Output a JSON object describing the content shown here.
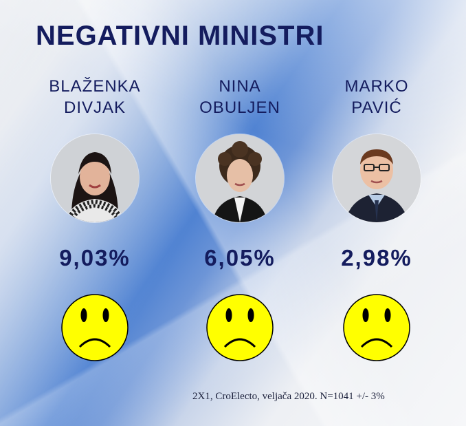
{
  "title": "NEGATIVNI MINISTRI",
  "ministers": [
    {
      "first": "BLAŽENKA",
      "last": "DIVJAK",
      "percent": "9,03%"
    },
    {
      "first": "NINA",
      "last": "OBULJEN",
      "percent": "6,05%"
    },
    {
      "first": "MARKO",
      "last": "PAVIĆ",
      "percent": "2,98%"
    }
  ],
  "source": "2X1, CroElecto, veljača 2020. N=1041 +/- 3%",
  "colors": {
    "title": "#141c5e",
    "smiley_face": "#ffff00",
    "background_accent": "#4f82d2"
  },
  "icons": [
    "sad-face-icon"
  ]
}
